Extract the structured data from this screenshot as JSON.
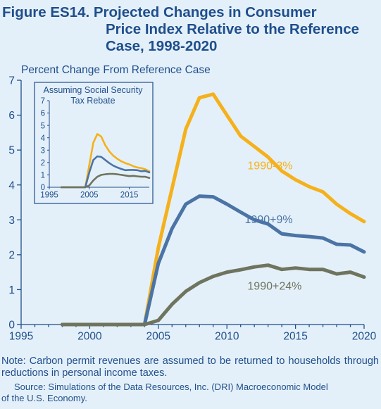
{
  "title_line1": "Figure ES14.  Projected Changes in Consumer",
  "title_line2": "Price Index Relative to the Reference",
  "title_line3": "Case, 1998-2020",
  "note": "Note: Carbon permit revenues are assumed to be returned to households through reductions in personal income taxes.",
  "source_line1": "Source: Simulations of the Data Resources, Inc. (DRI) Macroeconomic Model",
  "source_line2": "of the U.S. Economy.",
  "colors": {
    "gold": "#f5b11c",
    "blue": "#4a74a6",
    "olive": "#6e745e",
    "text": "#1f4e8c",
    "background": "#e4f0f9"
  },
  "chart_data": [
    {
      "type": "line",
      "ylabel": "Percent Change From Reference Case",
      "xlim": [
        1995,
        2020
      ],
      "ylim": [
        0,
        7
      ],
      "xticks": [
        1995,
        2000,
        2005,
        2010,
        2015,
        2020
      ],
      "yticks": [
        0,
        1,
        2,
        3,
        4,
        5,
        6,
        7
      ],
      "grid": false,
      "x": [
        1998,
        1999,
        2000,
        2001,
        2002,
        2003,
        2004,
        2005,
        2006,
        2007,
        2008,
        2009,
        2010,
        2011,
        2012,
        2013,
        2014,
        2015,
        2016,
        2017,
        2018,
        2019,
        2020
      ],
      "series": [
        {
          "name": "1990-3%",
          "color": "#f5b11c",
          "label_x": 2011.5,
          "label_y": 4.45,
          "values": [
            0,
            0,
            0,
            0,
            0,
            0,
            0,
            2.2,
            3.9,
            5.6,
            6.5,
            6.6,
            6.0,
            5.4,
            5.1,
            4.8,
            4.4,
            4.15,
            3.95,
            3.8,
            3.45,
            3.18,
            2.95
          ]
        },
        {
          "name": "1990+9%",
          "color": "#4a74a6",
          "label_x": 2011.3,
          "label_y": 2.9,
          "values": [
            0,
            0,
            0,
            0,
            0,
            0,
            0,
            1.75,
            2.75,
            3.45,
            3.68,
            3.66,
            3.45,
            3.22,
            3.0,
            2.88,
            2.6,
            2.55,
            2.52,
            2.48,
            2.3,
            2.28,
            2.08
          ]
        },
        {
          "name": "1990+24%",
          "color": "#6e745e",
          "label_x": 2011.5,
          "label_y": 1.0,
          "values": [
            0,
            0,
            0,
            0,
            0,
            0,
            0,
            0.12,
            0.58,
            0.95,
            1.2,
            1.38,
            1.5,
            1.57,
            1.65,
            1.7,
            1.58,
            1.62,
            1.58,
            1.58,
            1.45,
            1.5,
            1.36
          ]
        }
      ]
    },
    {
      "type": "line",
      "title": "Assuming Social Security Tax Rebate",
      "title_line1": "Assuming Social Security",
      "title_line2": "Tax Rebate",
      "xlim": [
        1995,
        2020
      ],
      "ylim": [
        0,
        7
      ],
      "xticks": [
        1995,
        2005,
        2015
      ],
      "yticks": [
        0,
        1,
        2,
        3,
        4,
        5,
        6,
        7
      ],
      "grid": false,
      "x": [
        1998,
        1999,
        2000,
        2001,
        2002,
        2003,
        2004,
        2005,
        2006,
        2007,
        2008,
        2009,
        2010,
        2011,
        2012,
        2013,
        2014,
        2015,
        2016,
        2017,
        2018,
        2019,
        2020
      ],
      "series": [
        {
          "color": "#f5b11c",
          "values": [
            0,
            0,
            0,
            0,
            0,
            0,
            0,
            1.8,
            3.6,
            4.3,
            4.1,
            3.4,
            2.9,
            2.55,
            2.3,
            2.1,
            1.95,
            1.85,
            1.7,
            1.6,
            1.55,
            1.45,
            1.3
          ]
        },
        {
          "color": "#4a74a6",
          "values": [
            0,
            0,
            0,
            0,
            0,
            0,
            0,
            1.2,
            2.2,
            2.5,
            2.45,
            2.2,
            1.95,
            1.75,
            1.6,
            1.48,
            1.38,
            1.4,
            1.4,
            1.38,
            1.3,
            1.32,
            1.2
          ]
        },
        {
          "color": "#6e745e",
          "values": [
            0,
            0,
            0,
            0,
            0,
            0,
            0,
            0.15,
            0.55,
            0.85,
            1.0,
            1.05,
            1.08,
            1.08,
            1.05,
            1.0,
            0.95,
            0.9,
            0.92,
            0.88,
            0.85,
            0.85,
            0.75
          ]
        }
      ]
    }
  ]
}
